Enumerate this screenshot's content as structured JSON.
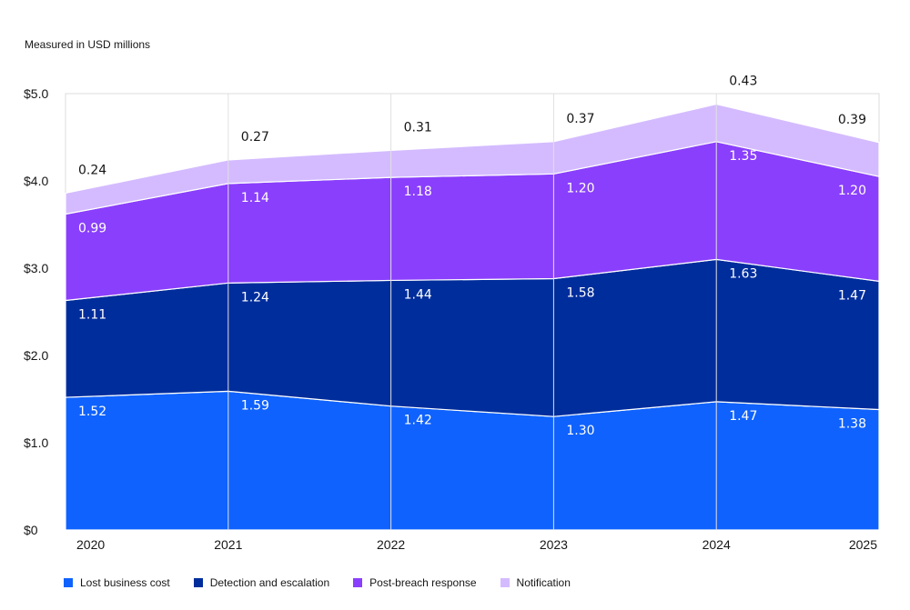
{
  "subtitle": "Measured in USD millions",
  "chart_data": {
    "type": "area",
    "stacked": true,
    "categories": [
      "2020",
      "2021",
      "2022",
      "2023",
      "2024",
      "2025"
    ],
    "ylim": [
      0,
      5
    ],
    "y_ticks": [
      "$0",
      "$1.0",
      "$2.0",
      "$3.0",
      "$4.0",
      "$5.0"
    ],
    "grid": "vertical",
    "legend_position": "bottom",
    "series": [
      {
        "name": "Lost business cost",
        "color": "#0f62fe",
        "values": [
          1.52,
          1.59,
          1.42,
          1.3,
          1.47,
          1.38
        ],
        "labels": [
          "1.52",
          "1.59",
          "1.42",
          "1.30",
          "1.47",
          "1.38"
        ]
      },
      {
        "name": "Detection and escalation",
        "color": "#002d9c",
        "values": [
          1.11,
          1.24,
          1.44,
          1.58,
          1.63,
          1.47
        ],
        "labels": [
          "1.11",
          "1.24",
          "1.44",
          "1.58",
          "1.63",
          "1.47"
        ]
      },
      {
        "name": "Post-breach response",
        "color": "#8a3ffc",
        "values": [
          0.99,
          1.14,
          1.18,
          1.2,
          1.35,
          1.2
        ],
        "labels": [
          "0.99",
          "1.14",
          "1.18",
          "1.20",
          "1.35",
          "1.20"
        ]
      },
      {
        "name": "Notification",
        "color": "#d4bbff",
        "values": [
          0.24,
          0.27,
          0.31,
          0.37,
          0.43,
          0.39
        ],
        "labels": [
          "0.24",
          "0.27",
          "0.31",
          "0.37",
          "0.43",
          "0.39"
        ]
      }
    ]
  }
}
